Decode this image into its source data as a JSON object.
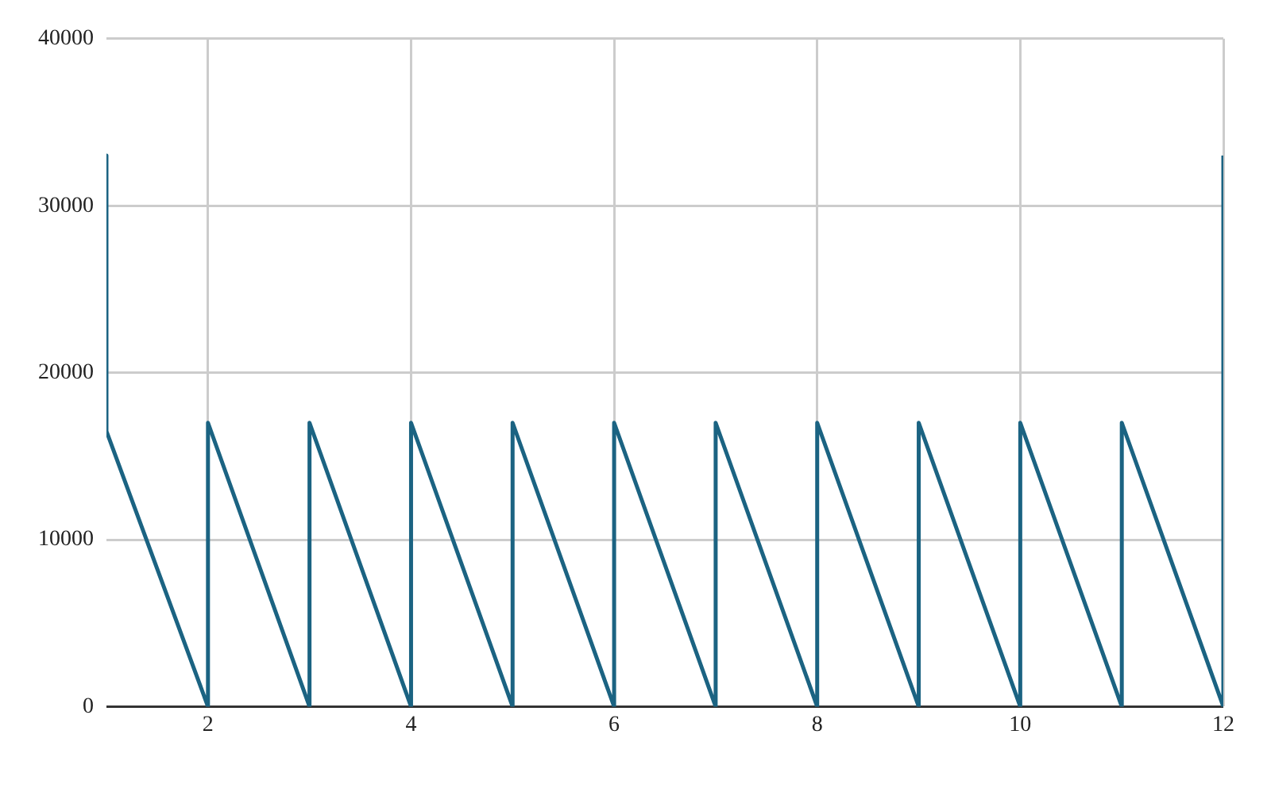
{
  "chart_data": {
    "type": "line",
    "x": [
      1,
      1,
      2,
      2,
      3,
      3,
      4,
      4,
      5,
      5,
      6,
      6,
      7,
      7,
      8,
      8,
      9,
      9,
      10,
      10,
      11,
      11,
      12,
      12
    ],
    "series": [
      {
        "color": "#1b6382",
        "values": [
          33000,
          16500,
          0,
          17000,
          0,
          17000,
          0,
          17000,
          0,
          17000,
          0,
          17000,
          0,
          17000,
          0,
          17000,
          0,
          17000,
          0,
          17000,
          0,
          17000,
          0,
          33000
        ]
      }
    ],
    "xlim": [
      1,
      12
    ],
    "xticks": [
      2,
      4,
      6,
      8,
      10,
      12
    ],
    "ylim": [
      0,
      40000
    ],
    "yticks": [
      0,
      10000,
      20000,
      30000,
      40000
    ],
    "grid": true,
    "legend": false,
    "marker": "none",
    "line_style": "solid"
  }
}
